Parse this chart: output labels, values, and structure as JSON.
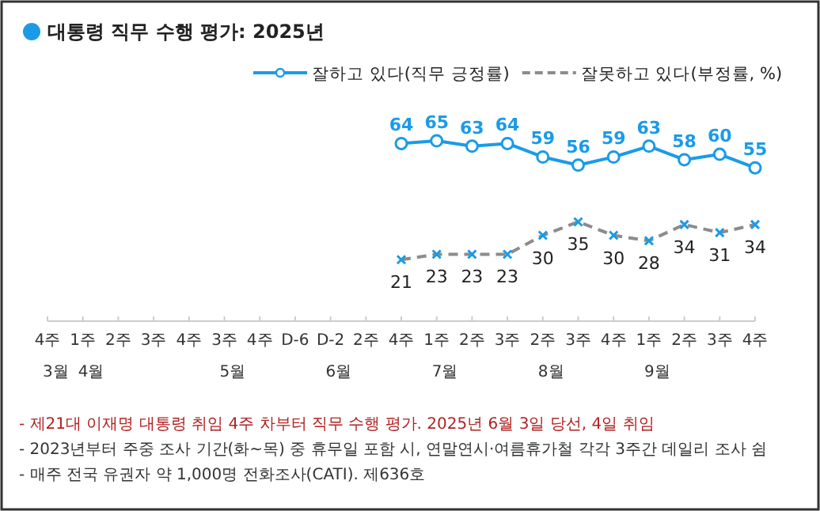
{
  "chart_data": {
    "type": "line",
    "title": "대통령 직무 수행 평가: 2025년",
    "categories": [
      "4주\n3월",
      "1주\n4월",
      "2주",
      "3주",
      "4주",
      "3주\n5월",
      "4주",
      "D-6",
      "D-2\n6월",
      "2주",
      "4주",
      "1주\n7월",
      "2주",
      "3주",
      "2주\n8월",
      "3주",
      "4주",
      "1주\n9월",
      "2주",
      "3주",
      "4주"
    ],
    "series": [
      {
        "name": "잘하고 있다(직무 긍정률)",
        "color": "#1a9be8",
        "marker": "circle",
        "line_style": "solid",
        "values": [
          null,
          null,
          null,
          null,
          null,
          null,
          null,
          null,
          null,
          null,
          64,
          65,
          63,
          64,
          59,
          56,
          59,
          63,
          58,
          60,
          55
        ]
      },
      {
        "name": "잘못하고 있다(부정률, %)",
        "color": "#8c8c8c",
        "colors": [
          null,
          null,
          null,
          null,
          null,
          null,
          null,
          null,
          null,
          null,
          "#1a9be8",
          "#1a9be8",
          "#1a9be8",
          "#1a9be8",
          "#1a9be8",
          "#1a9be8",
          "#1a9be8",
          "#1a9be8",
          "#1a9be8",
          "#1a9be8",
          "#1a9be8"
        ],
        "marker": "cross",
        "line_style": "dashed",
        "values": [
          null,
          null,
          null,
          null,
          null,
          null,
          null,
          null,
          null,
          null,
          21,
          23,
          23,
          23,
          30,
          35,
          30,
          28,
          34,
          31,
          34
        ]
      }
    ],
    "data_labels": true,
    "legend": "top right",
    "grid": false,
    "annotations": [
      "- 제21대 이재명 대통령 취임 4주 차부터 직무 수행 평가. 2025년 6월 3일 당선, 4일 취임",
      "- 2023년부터 주중 조사 기간(화~목) 중 휴무일 포함 시, 연말연시·여름휴가철 각각 3주간 데일리 조사 쉼",
      "- 매주 전국 유권자 약 1,000명 전화조사(CATI). 제636호"
    ]
  }
}
